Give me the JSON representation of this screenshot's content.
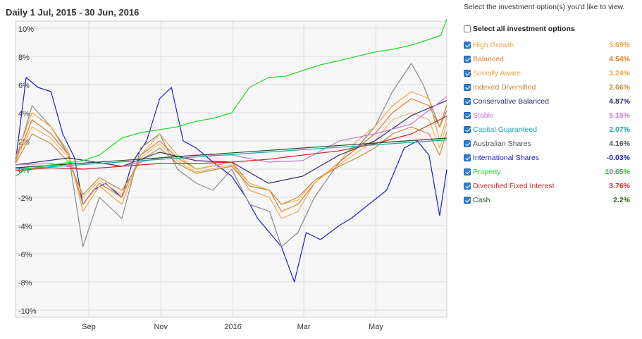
{
  "title": "Daily 1 Jul, 2015 - 30 Jun, 2016",
  "legend_panel": {
    "instruction": "Select the investment option(s) you'd like to view.",
    "select_all_label": "Select all investment options",
    "items": [
      {
        "name": "High Growth",
        "value": "3.69%",
        "color": "#f0a540",
        "value_color": "#f0a540"
      },
      {
        "name": "Balanced",
        "value": "4.54%",
        "color": "#e07b2a",
        "value_color": "#e07b2a"
      },
      {
        "name": "Socially Aware",
        "value": "3.24%",
        "color": "#f0a540",
        "value_color": "#f0a540"
      },
      {
        "name": "Indexed Diversified",
        "value": "2.66%",
        "color": "#c08a3c",
        "value_color": "#c08a3c"
      },
      {
        "name": "Conservative Balanced",
        "value": "4.87%",
        "color": "#2b2b6b",
        "value_color": "#2b2b6b"
      },
      {
        "name": "Stable",
        "value": "5.15%",
        "color": "#c77bd6",
        "value_color": "#c77bd6"
      },
      {
        "name": "Capital Guaranteed",
        "value": "2.07%",
        "color": "#1aa6b4",
        "value_color": "#1aa6b4"
      },
      {
        "name": "Australian Shares",
        "value": "4.16%",
        "color": "#555555",
        "value_color": "#555555"
      },
      {
        "name": "International Shares",
        "value": "-0.03%",
        "color": "#1c1cc8",
        "value_color": "#1c1cc8"
      },
      {
        "name": "Property",
        "value": "10.65%",
        "color": "#22dd22",
        "value_color": "#22cc22"
      },
      {
        "name": "Diversified Fixed Interest",
        "value": "3.76%",
        "color": "#d42a2a",
        "value_color": "#d42a2a"
      },
      {
        "name": "Cash",
        "value": "2.2%",
        "color": "#1e4d1e",
        "value_color": "#2d5a1e"
      }
    ]
  },
  "chart_data": {
    "type": "line",
    "title": "Daily 1 Jul, 2015 - 30 Jun, 2016",
    "x_ticks": [
      "Sep",
      "Nov",
      "2016",
      "Mar",
      "May"
    ],
    "x_tick_positions": [
      "2015-09-01",
      "2015-11-01",
      "2016-01-01",
      "2016-03-01",
      "2016-05-01"
    ],
    "xlim": [
      "2015-07-01",
      "2016-06-30"
    ],
    "y_ticks": [
      "10%",
      "8%",
      "6%",
      "4%",
      "2%",
      "0%",
      "-2%",
      "-4%",
      "-6%",
      "-8%",
      "-10%"
    ],
    "y_tick_values": [
      10,
      8,
      6,
      4,
      2,
      0,
      -2,
      -4,
      -6,
      -8,
      -10
    ],
    "ylim": [
      -10.5,
      10.5
    ],
    "grid": true,
    "series": [
      {
        "name": "International Shares",
        "color": "#1c1cc8",
        "x": [
          "2015-07-01",
          "2015-07-10",
          "2015-07-20",
          "2015-07-31",
          "2015-08-10",
          "2015-08-20",
          "2015-08-27",
          "2015-09-05",
          "2015-09-15",
          "2015-09-29",
          "2015-10-08",
          "2015-10-20",
          "2015-10-31",
          "2015-11-10",
          "2015-11-20",
          "2015-12-01",
          "2015-12-15",
          "2015-12-31",
          "2016-01-12",
          "2016-01-22",
          "2016-02-01",
          "2016-02-11",
          "2016-02-22",
          "2016-03-03",
          "2016-03-15",
          "2016-03-31",
          "2016-04-10",
          "2016-04-25",
          "2016-05-10",
          "2016-05-25",
          "2016-06-05",
          "2016-06-15",
          "2016-06-24",
          "2016-06-30"
        ],
        "values": [
          0.5,
          6.5,
          5.8,
          5.5,
          2.5,
          0.8,
          -2.5,
          -1.5,
          -1.0,
          -2.0,
          0.5,
          2.0,
          5.0,
          5.8,
          2.0,
          1.5,
          0.5,
          -0.5,
          -2.0,
          -3.5,
          -4.5,
          -5.5,
          -8.0,
          -4.5,
          -5.0,
          -4.0,
          -3.5,
          -2.5,
          -1.5,
          1.5,
          2.0,
          1.0,
          -3.3,
          -0.03
        ]
      },
      {
        "name": "Australian Shares",
        "color": "#888888",
        "x": [
          "2015-07-01",
          "2015-07-15",
          "2015-07-31",
          "2015-08-15",
          "2015-08-27",
          "2015-09-10",
          "2015-09-29",
          "2015-10-15",
          "2015-10-31",
          "2015-11-15",
          "2015-12-01",
          "2015-12-15",
          "2015-12-31",
          "2016-01-15",
          "2016-02-01",
          "2016-02-11",
          "2016-02-25",
          "2016-03-10",
          "2016-03-31",
          "2016-04-15",
          "2016-04-30",
          "2016-05-15",
          "2016-05-31",
          "2016-06-10",
          "2016-06-24",
          "2016-06-30"
        ],
        "values": [
          0.5,
          4.5,
          3.0,
          1.0,
          -5.5,
          -2.0,
          -3.5,
          1.5,
          2.5,
          0.0,
          -1.0,
          -1.5,
          0.0,
          -2.5,
          -3.0,
          -5.5,
          -4.5,
          -2.0,
          0.5,
          1.5,
          3.0,
          5.5,
          7.5,
          6.0,
          3.0,
          4.16
        ]
      },
      {
        "name": "Balanced",
        "color": "#e07b2a",
        "x": [
          "2015-07-01",
          "2015-07-15",
          "2015-07-31",
          "2015-08-15",
          "2015-08-27",
          "2015-09-10",
          "2015-09-29",
          "2015-10-15",
          "2015-10-31",
          "2015-11-15",
          "2015-12-01",
          "2015-12-31",
          "2016-01-15",
          "2016-02-01",
          "2016-02-11",
          "2016-02-25",
          "2016-03-10",
          "2016-03-31",
          "2016-04-15",
          "2016-04-30",
          "2016-05-15",
          "2016-05-31",
          "2016-06-15",
          "2016-06-24",
          "2016-06-30"
        ],
        "values": [
          0.5,
          3.5,
          2.5,
          1.0,
          -2.5,
          -1.0,
          -2.0,
          1.0,
          2.0,
          0.8,
          0.0,
          0.5,
          -1.0,
          -1.5,
          -3.0,
          -2.5,
          -1.0,
          0.5,
          1.5,
          2.5,
          4.0,
          5.0,
          4.5,
          3.0,
          4.54
        ]
      },
      {
        "name": "High Growth",
        "color": "#f0a540",
        "x": [
          "2015-07-01",
          "2015-07-15",
          "2015-07-31",
          "2015-08-15",
          "2015-08-27",
          "2015-09-10",
          "2015-09-29",
          "2015-10-15",
          "2015-10-31",
          "2015-11-15",
          "2015-12-01",
          "2015-12-31",
          "2016-01-15",
          "2016-02-01",
          "2016-02-11",
          "2016-02-25",
          "2016-03-10",
          "2016-03-31",
          "2016-04-15",
          "2016-04-30",
          "2016-05-15",
          "2016-05-31",
          "2016-06-15",
          "2016-06-24",
          "2016-06-30"
        ],
        "values": [
          0.8,
          4.0,
          3.0,
          1.2,
          -3.0,
          -1.2,
          -2.5,
          1.0,
          2.5,
          1.0,
          0.0,
          0.5,
          -1.5,
          -2.0,
          -3.5,
          -3.0,
          -1.0,
          0.5,
          2.0,
          3.0,
          4.5,
          5.5,
          5.0,
          2.0,
          3.69
        ]
      },
      {
        "name": "Socially Aware",
        "color": "#f5b860",
        "x": [
          "2015-07-01",
          "2015-07-15",
          "2015-07-31",
          "2015-08-15",
          "2015-08-27",
          "2015-09-10",
          "2015-09-29",
          "2015-10-15",
          "2015-10-31",
          "2015-11-15",
          "2015-12-01",
          "2015-12-31",
          "2016-01-15",
          "2016-02-01",
          "2016-02-11",
          "2016-02-25",
          "2016-03-10",
          "2016-03-31",
          "2016-04-15",
          "2016-04-30",
          "2016-05-15",
          "2016-05-31",
          "2016-06-15",
          "2016-06-24",
          "2016-06-30"
        ],
        "values": [
          0.6,
          3.0,
          2.2,
          0.8,
          -2.0,
          -0.8,
          -1.8,
          0.8,
          1.8,
          0.6,
          -0.2,
          0.3,
          -1.0,
          -1.5,
          -2.5,
          -2.2,
          -0.8,
          0.3,
          1.2,
          2.0,
          3.5,
          4.0,
          3.5,
          1.5,
          3.24
        ]
      },
      {
        "name": "Indexed Diversified",
        "color": "#c08a3c",
        "x": [
          "2015-07-01",
          "2015-07-15",
          "2015-07-31",
          "2015-08-15",
          "2015-08-27",
          "2015-09-10",
          "2015-09-29",
          "2015-10-15",
          "2015-10-31",
          "2015-11-15",
          "2015-12-01",
          "2015-12-31",
          "2016-01-15",
          "2016-02-01",
          "2016-02-11",
          "2016-02-25",
          "2016-03-10",
          "2016-03-31",
          "2016-04-15",
          "2016-04-30",
          "2016-05-15",
          "2016-05-31",
          "2016-06-15",
          "2016-06-24",
          "2016-06-30"
        ],
        "values": [
          0.4,
          2.5,
          1.8,
          0.5,
          -1.8,
          -0.6,
          -1.5,
          0.6,
          1.5,
          0.4,
          -0.3,
          0.2,
          -1.2,
          -1.5,
          -2.5,
          -2.0,
          -0.8,
          0.2,
          0.8,
          1.5,
          2.5,
          3.0,
          2.5,
          1.0,
          2.66
        ]
      },
      {
        "name": "Conservative Balanced",
        "color": "#2b2b6b",
        "x": [
          "2015-07-01",
          "2015-08-15",
          "2015-09-29",
          "2015-10-31",
          "2015-12-01",
          "2015-12-31",
          "2016-01-31",
          "2016-02-29",
          "2016-03-31",
          "2016-04-30",
          "2016-05-31",
          "2016-06-30"
        ],
        "values": [
          0.3,
          0.8,
          0.2,
          1.2,
          0.6,
          0.5,
          -1.0,
          -0.5,
          1.0,
          2.0,
          3.8,
          4.87
        ]
      },
      {
        "name": "Stable",
        "color": "#c77bd6",
        "x": [
          "2015-07-01",
          "2015-07-31",
          "2015-08-27",
          "2015-09-29",
          "2015-10-31",
          "2015-12-01",
          "2015-12-31",
          "2016-01-31",
          "2016-02-29",
          "2016-03-31",
          "2016-04-30",
          "2016-05-31",
          "2016-06-30"
        ],
        "values": [
          0.3,
          0.4,
          0.0,
          0.2,
          0.8,
          1.0,
          1.0,
          0.5,
          0.6,
          2.0,
          2.5,
          3.2,
          5.15
        ]
      },
      {
        "name": "Diversified Fixed Interest",
        "color": "#d42a2a",
        "x": [
          "2015-07-01",
          "2015-07-31",
          "2015-08-27",
          "2015-09-29",
          "2015-10-31",
          "2015-12-01",
          "2015-12-31",
          "2016-01-31",
          "2016-02-29",
          "2016-03-31",
          "2016-04-30",
          "2016-05-31",
          "2016-06-30"
        ],
        "values": [
          -0.1,
          0.1,
          0.0,
          0.2,
          0.4,
          0.4,
          0.5,
          0.7,
          1.0,
          1.3,
          1.8,
          2.5,
          3.76
        ]
      },
      {
        "name": "Capital Guaranteed",
        "color": "#1aa6b4",
        "x": [
          "2015-07-01",
          "2016-06-30"
        ],
        "values": [
          0.0,
          2.07
        ]
      },
      {
        "name": "Cash",
        "color": "#1e4d1e",
        "x": [
          "2015-07-01",
          "2016-06-30"
        ],
        "values": [
          0.1,
          2.2
        ]
      },
      {
        "name": "Property",
        "color": "#22dd22",
        "x": [
          "2015-07-01",
          "2015-07-10",
          "2015-07-31",
          "2015-08-27",
          "2015-09-10",
          "2015-09-29",
          "2015-10-15",
          "2015-10-31",
          "2015-11-15",
          "2015-12-01",
          "2015-12-15",
          "2015-12-31",
          "2016-01-15",
          "2016-01-31",
          "2016-02-15",
          "2016-02-29",
          "2016-03-15",
          "2016-03-31",
          "2016-04-15",
          "2016-04-30",
          "2016-05-15",
          "2016-05-31",
          "2016-06-15",
          "2016-06-25",
          "2016-06-30"
        ],
        "values": [
          -0.5,
          0.0,
          0.3,
          0.6,
          1.0,
          2.2,
          2.6,
          2.8,
          3.0,
          3.4,
          3.6,
          4.0,
          5.8,
          6.5,
          6.6,
          7.0,
          7.4,
          7.7,
          8.0,
          8.3,
          8.5,
          8.8,
          9.2,
          9.5,
          10.65
        ]
      }
    ]
  }
}
